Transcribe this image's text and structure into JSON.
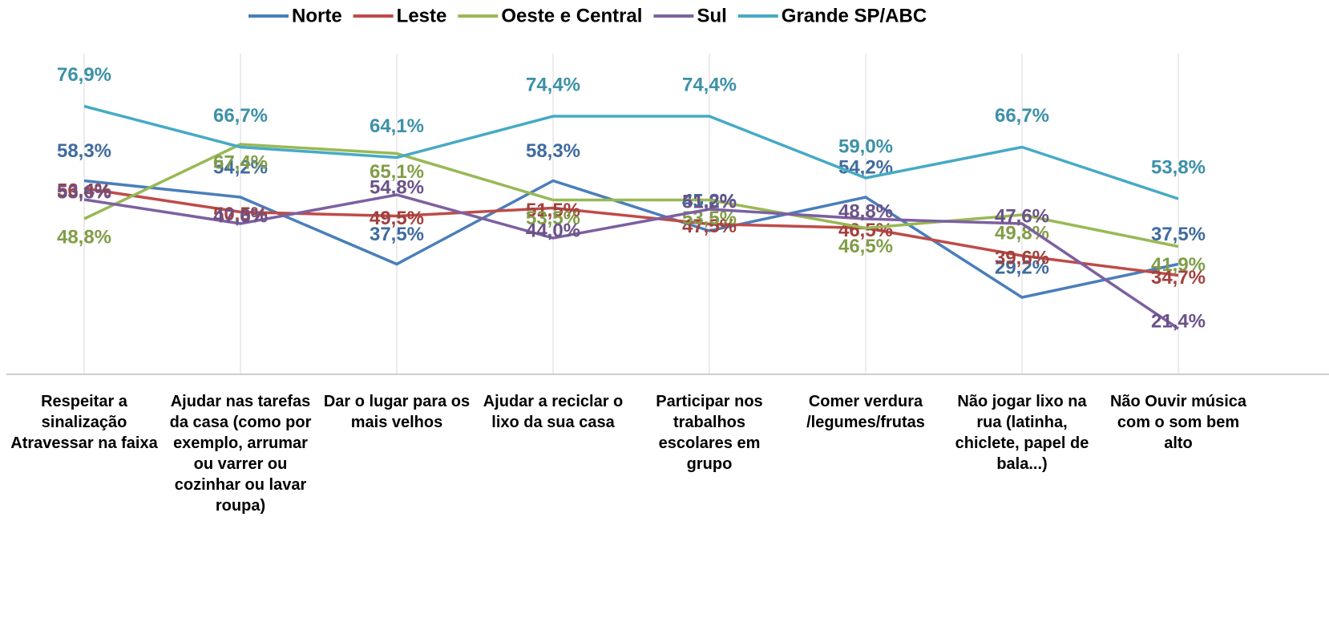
{
  "chart_data": {
    "type": "line",
    "categories": [
      "Respeitar a sinalização Atravessar na faixa",
      "Ajudar nas tarefas da casa (como por exemplo, arrumar ou varrer ou cozinhar ou lavar roupa)",
      "Dar o lugar para os mais velhos",
      "Ajudar a reciclar o lixo da sua casa",
      "Participar nos trabalhos escolares em grupo",
      "Comer verdura /legumes/frutas",
      "Não jogar lixo na rua (latinha, chiclete, papel de bala...)",
      "Não Ouvir música com o som bem alto"
    ],
    "series": [
      {
        "name": "Norte",
        "color": "#4a7ebb",
        "values": [
          58.3,
          54.2,
          37.5,
          58.3,
          45.8,
          54.2,
          29.2,
          37.5
        ],
        "value_labels": [
          "58,3%",
          "54,2%",
          "37,5%",
          "58,3%",
          "45,8%",
          "54,2%",
          "29,2%",
          "37,5%"
        ]
      },
      {
        "name": "Leste",
        "color": "#be4b48",
        "values": [
          56.4,
          50.5,
          49.5,
          51.5,
          47.5,
          46.5,
          39.6,
          34.7
        ],
        "value_labels": [
          "56,4%",
          "50,5%",
          "49,5%",
          "51,5%",
          "47,5%",
          "46,5%",
          "39,6%",
          "34,7%"
        ]
      },
      {
        "name": "Oeste e Central",
        "color": "#98b954",
        "values": [
          48.8,
          67.4,
          65.1,
          53.5,
          53.5,
          46.5,
          49.8,
          41.9
        ],
        "value_labels": [
          "48,8%",
          "67,4%",
          "65,1%",
          "53,5%",
          "53,5%",
          "46,5%",
          "49,8%",
          "41,9%"
        ]
      },
      {
        "name": "Sul",
        "color": "#7d60a0",
        "values": [
          53.6,
          47.6,
          54.8,
          44.0,
          51.2,
          48.8,
          47.6,
          21.4
        ],
        "value_labels": [
          "53,6%",
          "47,6%",
          "54,8%",
          "44,0%",
          "51,2%",
          "48,8%",
          "47,6%",
          "21,4%"
        ]
      },
      {
        "name": "Grande SP/ABC",
        "color": "#46aac5",
        "values": [
          76.9,
          66.7,
          64.1,
          74.4,
          74.4,
          59.0,
          66.7,
          53.8
        ],
        "value_labels": [
          "76,9%",
          "66,7%",
          "64,1%",
          "74,4%",
          "74,4%",
          "59,0%",
          "66,7%",
          "53,8%"
        ]
      }
    ],
    "ylim": [
      10,
      90
    ],
    "legend": "top"
  }
}
